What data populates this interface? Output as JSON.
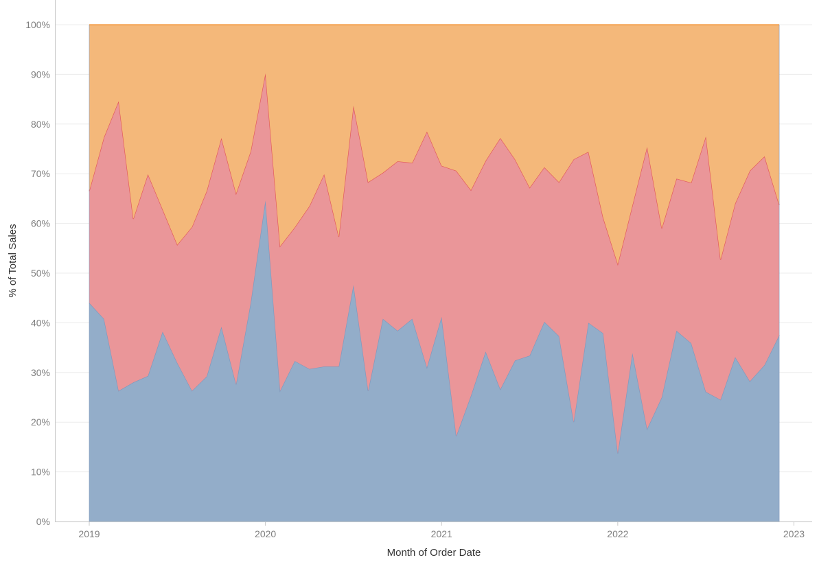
{
  "chart_data": {
    "type": "area",
    "stacked": "percent",
    "xlabel": "Month of Order Date",
    "ylabel": "% of Total Sales",
    "ylim": [
      0,
      100
    ],
    "y_ticks": [
      "0%",
      "10%",
      "20%",
      "30%",
      "40%",
      "50%",
      "60%",
      "70%",
      "80%",
      "90%",
      "100%"
    ],
    "x_ticks": [
      "2019",
      "2020",
      "2021",
      "2022",
      "2023"
    ],
    "x_start": "2019-01",
    "grid": true,
    "colors": {
      "lower": "#93adc9",
      "lower_line": "#7f98bd",
      "middle": "#ea9699",
      "middle_line": "#e15759",
      "upper": "#f4b87a",
      "upper_line": "#f28e2b",
      "grid": "#ececec",
      "axis": "#c8c8c8"
    },
    "series": [
      {
        "values": [
          44,
          40.8,
          26.3,
          28,
          29.3,
          38.2,
          31.9,
          26.3,
          29.2,
          39.2,
          27.6,
          44,
          64.6,
          26.3,
          32.3,
          30.7,
          31.2,
          31.2,
          47.6,
          26.3,
          40.8,
          38.4,
          40.8,
          31,
          41.2,
          17.2,
          25.3,
          34.2,
          26.6,
          32.4,
          33.4,
          40.2,
          37.3,
          20,
          40,
          37.9,
          13.7,
          33.9,
          18.6,
          25,
          38.4,
          35.9,
          26.1,
          24.5,
          33.1,
          28.2,
          31.5,
          37.5
        ]
      },
      {
        "values": [
          66.5,
          77.3,
          84.6,
          60.9,
          69.9,
          62.8,
          55.7,
          59.3,
          66.5,
          77.2,
          66,
          74.5,
          90.2,
          55.4,
          59.2,
          63.5,
          69.9,
          57.3,
          83.7,
          68.3,
          70.2,
          72.5,
          72.2,
          78.5,
          71.6,
          70.6,
          66.7,
          72.6,
          77.2,
          72.9,
          67.2,
          71.3,
          68.3,
          72.9,
          74.4,
          61.2,
          51.8,
          63.6,
          75.4,
          59,
          69,
          68.2,
          77.5,
          52.7,
          64,
          70.6,
          73.5,
          63.7
        ]
      },
      {
        "values": [
          100,
          100,
          100,
          100,
          100,
          100,
          100,
          100,
          100,
          100,
          100,
          100,
          100,
          100,
          100,
          100,
          100,
          100,
          100,
          100,
          100,
          100,
          100,
          100,
          100,
          100,
          100,
          100,
          100,
          100,
          100,
          100,
          100,
          100,
          100,
          100,
          100,
          100,
          100,
          100,
          100,
          100,
          100,
          100,
          100,
          100,
          100,
          100
        ]
      }
    ]
  }
}
